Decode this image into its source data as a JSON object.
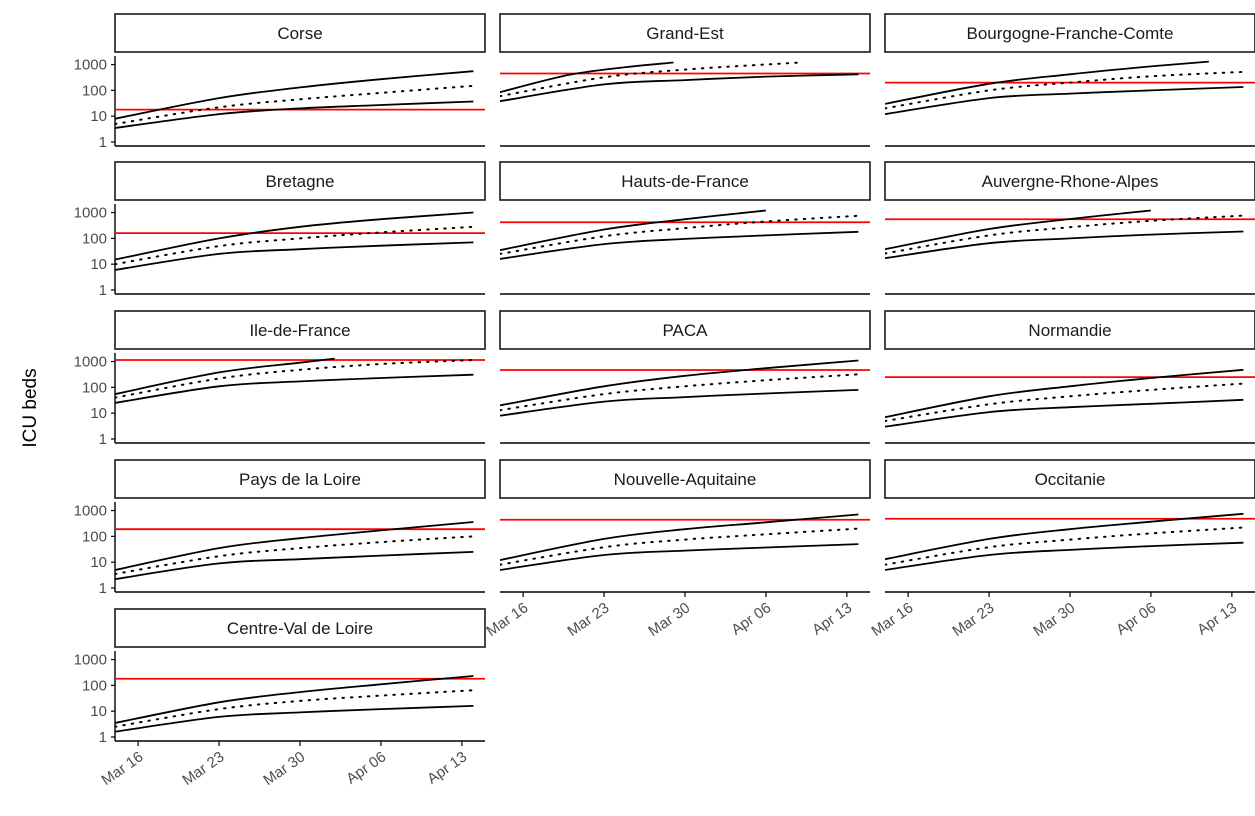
{
  "chart_data": {
    "type": "line",
    "ylabel": "ICU beds",
    "xlabel": "",
    "y_scale": "log10",
    "ylim": [
      1,
      1500
    ],
    "y_ticks": [
      "1",
      "10",
      "100",
      "1000"
    ],
    "x_range": [
      "2020-03-14",
      "2020-04-15"
    ],
    "x_ticks": [
      {
        "date": "2020-03-16",
        "label": "Mar 16"
      },
      {
        "date": "2020-03-23",
        "label": "Mar 23"
      },
      {
        "date": "2020-03-30",
        "label": "Mar 30"
      },
      {
        "date": "2020-04-06",
        "label": "Apr 06"
      },
      {
        "date": "2020-04-13",
        "label": "Apr 13"
      }
    ],
    "grid": false,
    "line_styles": {
      "upper": "solid",
      "median": "dotted",
      "lower": "solid",
      "capacity": "solid"
    },
    "colors": {
      "bounds": "#000000",
      "median": "#000000",
      "capacity": "#ff0000",
      "strip_border": "#1a1a1a",
      "axis": "#000000"
    },
    "panels": [
      {
        "region": "Corse",
        "capacity": 18,
        "upper": {
          "x": [
            "2020-03-14",
            "2020-03-23",
            "2020-03-30",
            "2020-04-06",
            "2020-04-14"
          ],
          "y": [
            8,
            50,
            130,
            270,
            550
          ]
        },
        "median": {
          "x": [
            "2020-03-14",
            "2020-03-23",
            "2020-03-30",
            "2020-04-06",
            "2020-04-14"
          ],
          "y": [
            5,
            22,
            45,
            80,
            150
          ]
        },
        "lower": {
          "x": [
            "2020-03-14",
            "2020-03-23",
            "2020-03-30",
            "2020-04-06",
            "2020-04-14"
          ],
          "y": [
            3.5,
            12,
            20,
            27,
            37
          ]
        }
      },
      {
        "region": "Grand-Est",
        "capacity": 450,
        "upper": {
          "x": [
            "2020-03-14",
            "2020-03-20",
            "2020-03-25",
            "2020-03-29"
          ],
          "y": [
            85,
            400,
            800,
            1200
          ]
        },
        "median": {
          "x": [
            "2020-03-14",
            "2020-03-23",
            "2020-03-30",
            "2020-04-06",
            "2020-04-09"
          ],
          "y": [
            60,
            320,
            640,
            1000,
            1200
          ]
        },
        "lower": {
          "x": [
            "2020-03-14",
            "2020-03-23",
            "2020-03-30",
            "2020-04-06",
            "2020-04-14"
          ],
          "y": [
            38,
            170,
            250,
            340,
            420
          ]
        }
      },
      {
        "region": "Bourgogne-Franche-Comte",
        "capacity": 200,
        "upper": {
          "x": [
            "2020-03-14",
            "2020-03-23",
            "2020-03-30",
            "2020-04-06",
            "2020-04-11"
          ],
          "y": [
            30,
            180,
            420,
            850,
            1300
          ]
        },
        "median": {
          "x": [
            "2020-03-14",
            "2020-03-23",
            "2020-03-30",
            "2020-04-06",
            "2020-04-14"
          ],
          "y": [
            20,
            100,
            200,
            350,
            520
          ]
        },
        "lower": {
          "x": [
            "2020-03-14",
            "2020-03-23",
            "2020-03-30",
            "2020-04-06",
            "2020-04-14"
          ],
          "y": [
            12,
            50,
            75,
            100,
            135
          ]
        }
      },
      {
        "region": "Bretagne",
        "capacity": 160,
        "upper": {
          "x": [
            "2020-03-14",
            "2020-03-23",
            "2020-03-30",
            "2020-04-06",
            "2020-04-14"
          ],
          "y": [
            15,
            100,
            280,
            550,
            1000
          ]
        },
        "median": {
          "x": [
            "2020-03-14",
            "2020-03-23",
            "2020-03-30",
            "2020-04-06",
            "2020-04-14"
          ],
          "y": [
            10,
            50,
            100,
            170,
            280
          ]
        },
        "lower": {
          "x": [
            "2020-03-14",
            "2020-03-23",
            "2020-03-30",
            "2020-04-06",
            "2020-04-14"
          ],
          "y": [
            6,
            25,
            38,
            52,
            70
          ]
        }
      },
      {
        "region": "Hauts-de-France",
        "capacity": 420,
        "upper": {
          "x": [
            "2020-03-14",
            "2020-03-23",
            "2020-03-30",
            "2020-04-06"
          ],
          "y": [
            35,
            220,
            550,
            1200
          ]
        },
        "median": {
          "x": [
            "2020-03-14",
            "2020-03-23",
            "2020-03-30",
            "2020-04-06",
            "2020-04-14"
          ],
          "y": [
            25,
            120,
            250,
            450,
            750
          ]
        },
        "lower": {
          "x": [
            "2020-03-14",
            "2020-03-23",
            "2020-03-30",
            "2020-04-06",
            "2020-04-14"
          ],
          "y": [
            16,
            60,
            95,
            130,
            180
          ]
        }
      },
      {
        "region": "Auvergne-Rhone-Alpes",
        "capacity": 550,
        "upper": {
          "x": [
            "2020-03-14",
            "2020-03-23",
            "2020-03-30",
            "2020-04-06"
          ],
          "y": [
            38,
            230,
            560,
            1200
          ]
        },
        "median": {
          "x": [
            "2020-03-14",
            "2020-03-23",
            "2020-03-30",
            "2020-04-06",
            "2020-04-14"
          ],
          "y": [
            26,
            130,
            270,
            480,
            760
          ]
        },
        "lower": {
          "x": [
            "2020-03-14",
            "2020-03-23",
            "2020-03-30",
            "2020-04-06",
            "2020-04-14"
          ],
          "y": [
            17,
            65,
            100,
            140,
            185
          ]
        }
      },
      {
        "region": "Ile-de-France",
        "capacity": 1150,
        "upper": {
          "x": [
            "2020-03-14",
            "2020-03-23",
            "2020-03-30",
            "2020-04-02"
          ],
          "y": [
            55,
            380,
            900,
            1300
          ]
        },
        "median": {
          "x": [
            "2020-03-14",
            "2020-03-23",
            "2020-03-30",
            "2020-04-06",
            "2020-04-14"
          ],
          "y": [
            40,
            220,
            480,
            800,
            1150
          ]
        },
        "lower": {
          "x": [
            "2020-03-14",
            "2020-03-23",
            "2020-03-30",
            "2020-04-06",
            "2020-04-14"
          ],
          "y": [
            25,
            110,
            170,
            230,
            310
          ]
        }
      },
      {
        "region": "PACA",
        "capacity": 470,
        "upper": {
          "x": [
            "2020-03-14",
            "2020-03-23",
            "2020-03-30",
            "2020-04-06",
            "2020-04-14"
          ],
          "y": [
            20,
            110,
            280,
            550,
            1100
          ]
        },
        "median": {
          "x": [
            "2020-03-14",
            "2020-03-23",
            "2020-03-30",
            "2020-04-06",
            "2020-04-14"
          ],
          "y": [
            13,
            55,
            110,
            190,
            320
          ]
        },
        "lower": {
          "x": [
            "2020-03-14",
            "2020-03-23",
            "2020-03-30",
            "2020-04-06",
            "2020-04-14"
          ],
          "y": [
            8,
            28,
            42,
            58,
            80
          ]
        }
      },
      {
        "region": "Normandie",
        "capacity": 250,
        "upper": {
          "x": [
            "2020-03-14",
            "2020-03-23",
            "2020-03-30",
            "2020-04-06",
            "2020-04-14"
          ],
          "y": [
            7,
            45,
            110,
            230,
            480
          ]
        },
        "median": {
          "x": [
            "2020-03-14",
            "2020-03-23",
            "2020-03-30",
            "2020-04-06",
            "2020-04-14"
          ],
          "y": [
            5,
            22,
            45,
            80,
            140
          ]
        },
        "lower": {
          "x": [
            "2020-03-14",
            "2020-03-23",
            "2020-03-30",
            "2020-04-06",
            "2020-04-14"
          ],
          "y": [
            3,
            11,
            17,
            23,
            33
          ]
        }
      },
      {
        "region": "Pays de la Loire",
        "capacity": 190,
        "upper": {
          "x": [
            "2020-03-14",
            "2020-03-23",
            "2020-03-30",
            "2020-04-06",
            "2020-04-14"
          ],
          "y": [
            5,
            35,
            85,
            170,
            360
          ]
        },
        "median": {
          "x": [
            "2020-03-14",
            "2020-03-23",
            "2020-03-30",
            "2020-04-06",
            "2020-04-14"
          ],
          "y": [
            3.5,
            17,
            35,
            60,
            100
          ]
        },
        "lower": {
          "x": [
            "2020-03-14",
            "2020-03-23",
            "2020-03-30",
            "2020-04-06",
            "2020-04-14"
          ],
          "y": [
            2.2,
            9,
            13,
            18,
            25
          ]
        }
      },
      {
        "region": "Nouvelle-Aquitaine",
        "capacity": 440,
        "upper": {
          "x": [
            "2020-03-14",
            "2020-03-23",
            "2020-03-30",
            "2020-04-06",
            "2020-04-14"
          ],
          "y": [
            12,
            80,
            190,
            350,
            700
          ]
        },
        "median": {
          "x": [
            "2020-03-14",
            "2020-03-23",
            "2020-03-30",
            "2020-04-06",
            "2020-04-14"
          ],
          "y": [
            8,
            38,
            75,
            120,
            200
          ]
        },
        "lower": {
          "x": [
            "2020-03-14",
            "2020-03-23",
            "2020-03-30",
            "2020-04-06",
            "2020-04-14"
          ],
          "y": [
            5,
            19,
            28,
            37,
            50
          ]
        }
      },
      {
        "region": "Occitanie",
        "capacity": 480,
        "upper": {
          "x": [
            "2020-03-14",
            "2020-03-23",
            "2020-03-30",
            "2020-04-06",
            "2020-04-14"
          ],
          "y": [
            13,
            80,
            190,
            370,
            750
          ]
        },
        "median": {
          "x": [
            "2020-03-14",
            "2020-03-23",
            "2020-03-30",
            "2020-04-06",
            "2020-04-14"
          ],
          "y": [
            8,
            38,
            75,
            130,
            220
          ]
        },
        "lower": {
          "x": [
            "2020-03-14",
            "2020-03-23",
            "2020-03-30",
            "2020-04-06",
            "2020-04-14"
          ],
          "y": [
            5,
            19,
            30,
            42,
            57
          ]
        }
      },
      {
        "region": "Centre-Val de Loire",
        "capacity": 180,
        "upper": {
          "x": [
            "2020-03-14",
            "2020-03-23",
            "2020-03-30",
            "2020-04-06",
            "2020-04-14"
          ],
          "y": [
            3.5,
            22,
            55,
            110,
            230
          ]
        },
        "median": {
          "x": [
            "2020-03-14",
            "2020-03-23",
            "2020-03-30",
            "2020-04-06",
            "2020-04-14"
          ],
          "y": [
            2.5,
            12,
            25,
            40,
            65
          ]
        },
        "lower": {
          "x": [
            "2020-03-14",
            "2020-03-23",
            "2020-03-30",
            "2020-04-06",
            "2020-04-14"
          ],
          "y": [
            1.6,
            6,
            9,
            12,
            16
          ]
        }
      }
    ]
  }
}
